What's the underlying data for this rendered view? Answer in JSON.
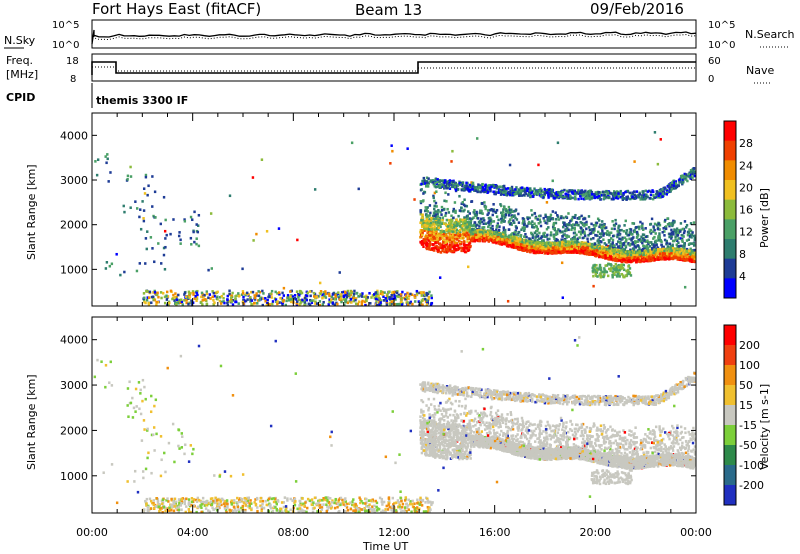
{
  "header": {
    "station": "Fort Hays East (fitACF)",
    "beam": "Beam 13",
    "date": "09/Feb/2016"
  },
  "noise_panel": {
    "left_label": "N.Sky",
    "right_label": "N.Search",
    "left_ticks": [
      "10^5",
      "10^0"
    ],
    "right_ticks": [
      "10^5",
      "10^0"
    ]
  },
  "freq_panel": {
    "left_label_line1": "Freq.",
    "left_label_line2": "[MHz]",
    "right_label": "Nave",
    "left_ticks": [
      "18",
      "8"
    ],
    "right_ticks": [
      "60",
      "0"
    ],
    "cpid_label": "CPID",
    "cpid_value": "themis 3300 IF"
  },
  "chart_data": [
    {
      "type": "heatmap",
      "name": "power",
      "ylabel": "Slant Range [km]",
      "colorbar_label": "Power [dB]",
      "ylim": [
        180,
        4500
      ],
      "y_ticks": [
        "4000",
        "3000",
        "2000",
        "1000"
      ],
      "x_ticks": [
        "00:00",
        "04:00",
        "08:00",
        "12:00",
        "16:00",
        "20:00",
        "00:00"
      ],
      "colorbar_ticks": [
        "28",
        "24",
        "20",
        "16",
        "12",
        "8",
        "4"
      ],
      "colorbar_range": [
        0,
        32
      ],
      "colors": [
        "#0000ff",
        "#1e3c96",
        "#2e7d6e",
        "#4aa066",
        "#8cbb3c",
        "#f0c020",
        "#f08c00",
        "#f04000",
        "#ff0000"
      ]
    },
    {
      "type": "heatmap",
      "name": "velocity",
      "ylabel": "Slant Range [km]",
      "xlabel": "Time UT",
      "colorbar_label": "Velocity [m s-1]",
      "ylim": [
        180,
        4500
      ],
      "y_ticks": [
        "4000",
        "3000",
        "2000",
        "1000"
      ],
      "x_ticks": [
        "00:00",
        "04:00",
        "08:00",
        "12:00",
        "16:00",
        "20:00",
        "00:00"
      ],
      "colorbar_ticks": [
        "200",
        "100",
        "50",
        "15",
        "-15",
        "-50",
        "-100",
        "-200"
      ],
      "colors": [
        "#2030c0",
        "#2a6a8a",
        "#2e8a4a",
        "#7ccf3a",
        "#c8c8c0",
        "#f0c030",
        "#f09010",
        "#f04010",
        "#ff0000"
      ]
    }
  ]
}
